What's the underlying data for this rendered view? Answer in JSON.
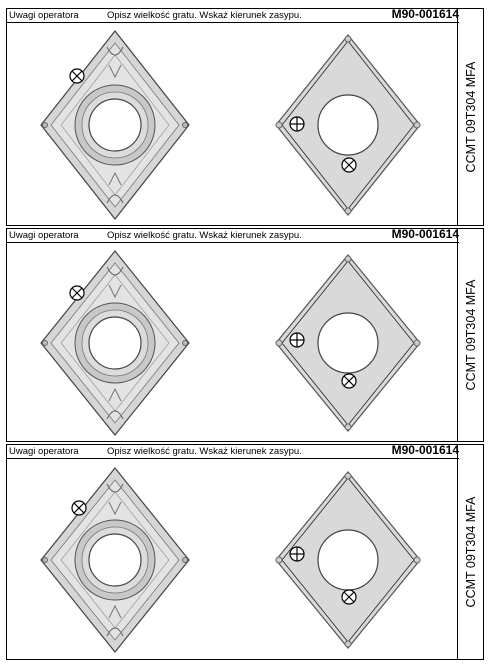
{
  "header": {
    "operator_label": "Uwagi operatora",
    "instruction": "Opisz wielkość gratu. Wskaż kierunek zasypu.",
    "part_code": "M90-001614"
  },
  "sidebar": {
    "product_name": "CCMT 09T304 MFA"
  },
  "panels": [
    {
      "id": "panel-1"
    },
    {
      "id": "panel-2"
    },
    {
      "id": "panel-3"
    }
  ],
  "colors": {
    "insert_fill": "#d9d9d9",
    "insert_line": "#444444",
    "border": "#000000"
  },
  "icons": {
    "fill_direction": "circle-cross-icon",
    "burr_marker": "circle-plus-icon"
  }
}
